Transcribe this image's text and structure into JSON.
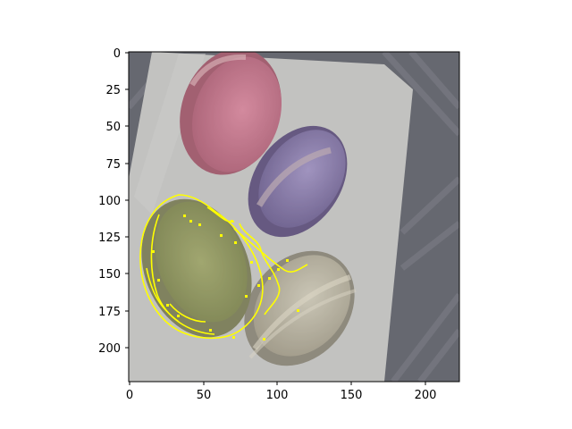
{
  "figure": {
    "description_free": true,
    "x_ticks": [
      "0",
      "50",
      "100",
      "150",
      "200"
    ],
    "y_ticks": [
      "0",
      "25",
      "50",
      "75",
      "100",
      "125",
      "150",
      "175",
      "200"
    ],
    "x_range": [
      -0.5,
      223.5
    ],
    "y_range": [
      223.5,
      -0.5
    ],
    "overlay_color": "#ffff00",
    "background_color": "#6e7077"
  }
}
